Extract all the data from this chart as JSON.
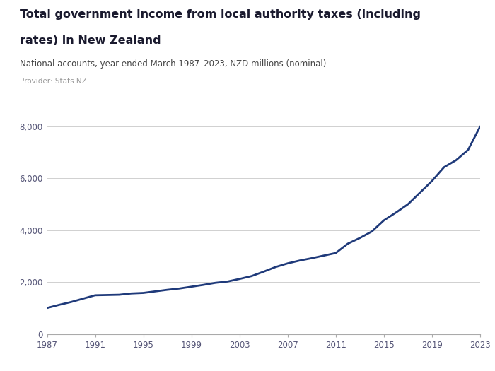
{
  "title_line1": "Total government income from local authority taxes (including",
  "title_line2": "rates) in New Zealand",
  "subtitle": "National accounts, year ended March 1987–2023, NZD millions (nominal)",
  "provider": "Provider: Stats NZ",
  "line_color": "#1f3a7a",
  "background_color": "#ffffff",
  "logo_bg_color": "#5b5ea6",
  "years": [
    1987,
    1988,
    1989,
    1990,
    1991,
    1992,
    1993,
    1994,
    1995,
    1996,
    1997,
    1998,
    1999,
    2000,
    2001,
    2002,
    2003,
    2004,
    2005,
    2006,
    2007,
    2008,
    2009,
    2010,
    2011,
    2012,
    2013,
    2014,
    2015,
    2016,
    2017,
    2018,
    2019,
    2020,
    2021,
    2022,
    2023
  ],
  "values": [
    1000,
    1120,
    1230,
    1360,
    1490,
    1500,
    1510,
    1560,
    1580,
    1640,
    1700,
    1750,
    1820,
    1890,
    1970,
    2020,
    2120,
    2230,
    2400,
    2580,
    2720,
    2830,
    2920,
    3020,
    3120,
    3480,
    3700,
    3950,
    4380,
    4680,
    5000,
    5450,
    5900,
    6430,
    6700,
    7100,
    8000
  ],
  "ylim": [
    0,
    8800
  ],
  "yticks": [
    0,
    2000,
    4000,
    6000,
    8000
  ],
  "xticks": [
    1987,
    1991,
    1995,
    1999,
    2003,
    2007,
    2011,
    2015,
    2019,
    2023
  ],
  "grid_color": "#d0d0d0",
  "title_color": "#1a1a2e",
  "subtitle_color": "#444444",
  "provider_color": "#999999",
  "tick_color": "#555577",
  "line_width": 2.0,
  "title_fontsize": 11.5,
  "subtitle_fontsize": 8.5,
  "provider_fontsize": 7.5,
  "tick_fontsize": 8.5
}
